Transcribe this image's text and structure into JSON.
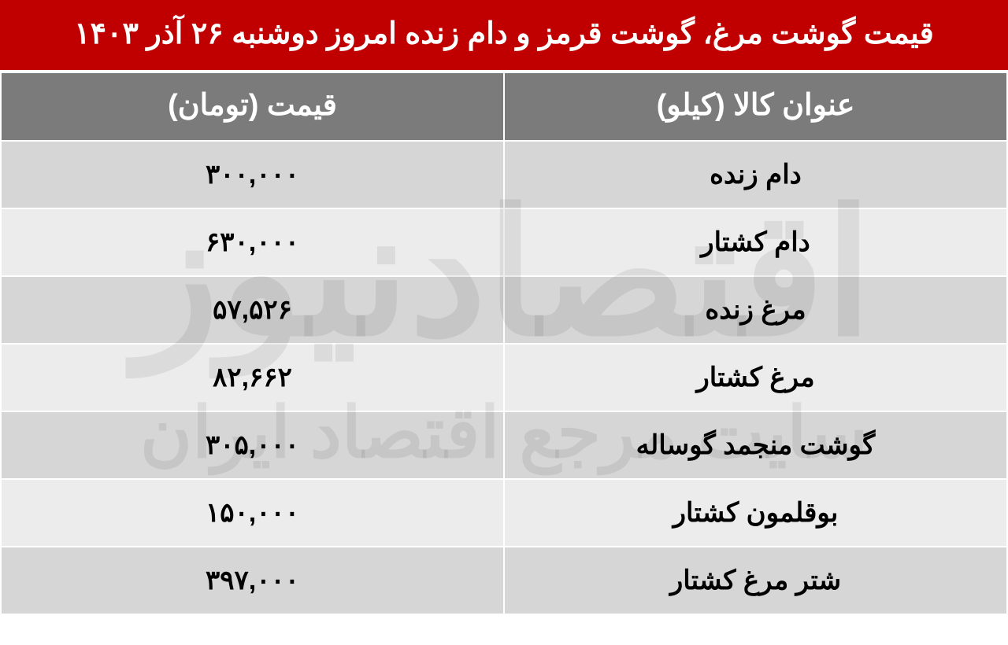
{
  "title": "قیمت گوشت مرغ، گوشت قرمز و دام زنده امروز دوشنبه ۲۶ آذر ۱۴۰۳",
  "columns": {
    "item": "عنوان کالا (کیلو)",
    "price": "قیمت (تومان)"
  },
  "rows": [
    {
      "item": "دام زنده",
      "price": "۳۰۰,۰۰۰"
    },
    {
      "item": "دام کشتار",
      "price": "۶۳۰,۰۰۰"
    },
    {
      "item": "مرغ زنده",
      "price": "۵۷,۵۲۶"
    },
    {
      "item": "مرغ کشتار",
      "price": "۸۲,۶۶۲"
    },
    {
      "item": "گوشت منجمد گوساله",
      "price": "۳۰۵,۰۰۰"
    },
    {
      "item": "بوقلمون کشتار",
      "price": "۱۵۰,۰۰۰"
    },
    {
      "item": "شتر مرغ کشتار",
      "price": "۳۹۷,۰۰۰"
    }
  ],
  "watermark": {
    "line1": "اقتصادنیوز",
    "line2": "سایت مرجع اقتصاد ایران"
  },
  "style": {
    "title_bg": "#c00000",
    "title_color": "#ffffff",
    "header_bg": "#7b7b7b",
    "header_color": "#ffffff",
    "row_odd_bg": "#d6d6d6",
    "row_even_bg": "#ececec",
    "text_color": "#000000",
    "title_fontsize": 38,
    "header_fontsize": 38,
    "cell_fontsize": 34,
    "watermark_color": "rgba(0,0,0,0.07)"
  }
}
